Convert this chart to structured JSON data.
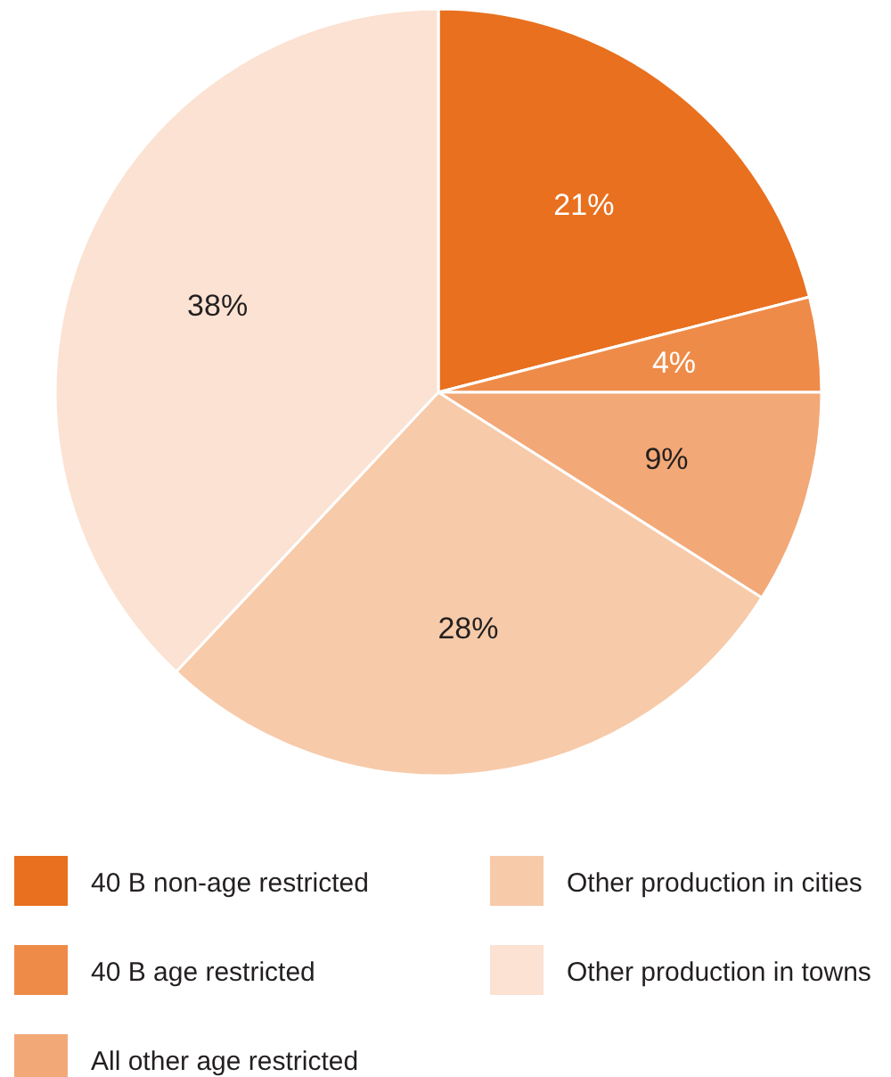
{
  "chart_data": {
    "type": "pie",
    "categories": [
      "40 B non-age restricted",
      "40 B age restricted",
      "All other age restricted",
      "Other production in cities",
      "Other production in towns"
    ],
    "values": [
      21,
      4,
      9,
      28,
      38
    ],
    "colors": [
      "#e8701f",
      "#ee8b48",
      "#f3a877",
      "#f7caa9",
      "#fbe2d2"
    ],
    "value_labels": [
      "21%",
      "4%",
      "9%",
      "28%",
      "38%"
    ],
    "legend": "bottom"
  }
}
